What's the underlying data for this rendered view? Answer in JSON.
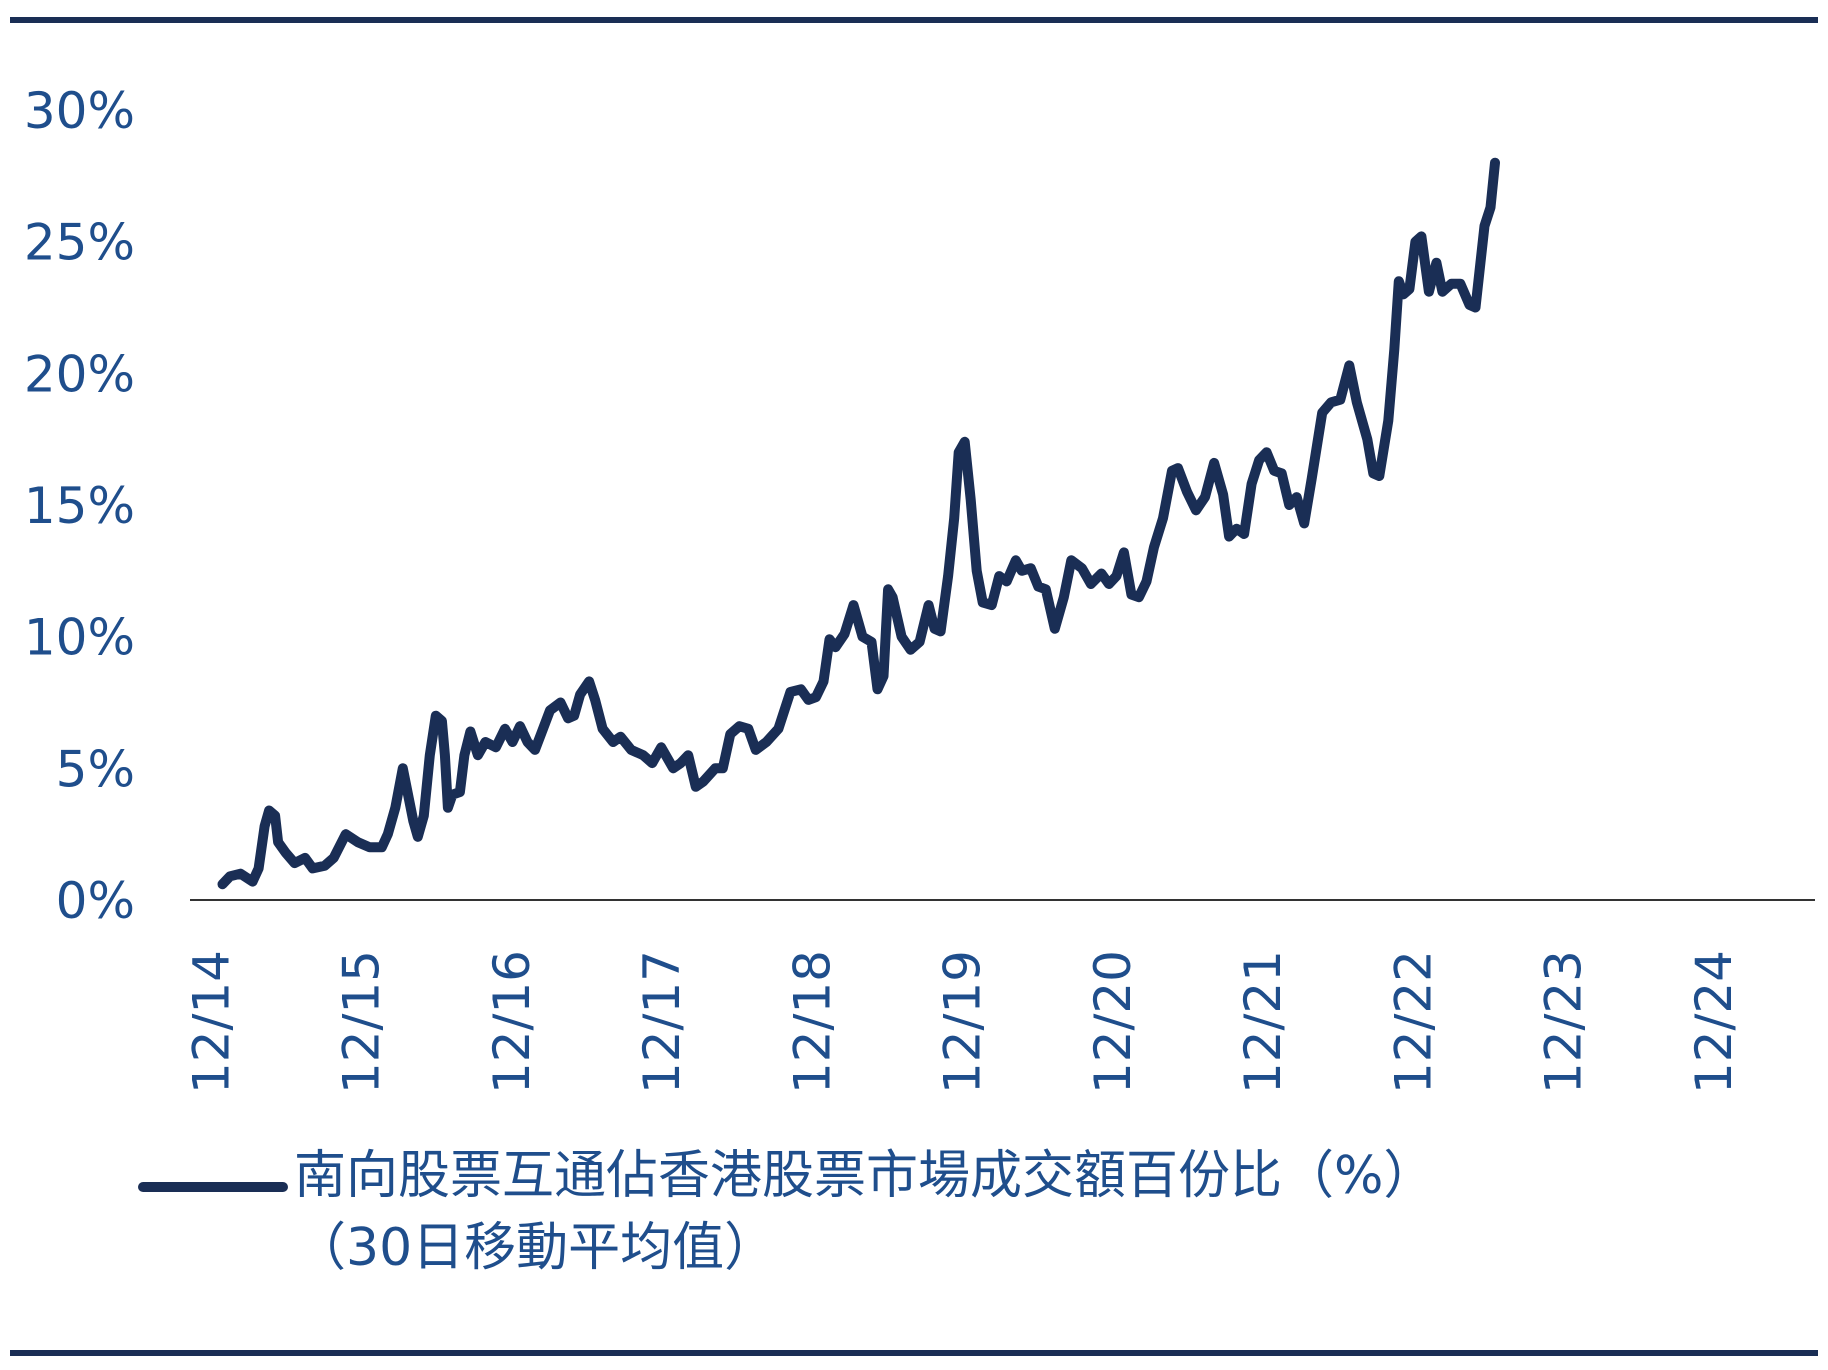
{
  "legend": {
    "line1": "南向股票互通佔香港股票市場成交額百份比（%）",
    "line2": "（30日移動平均值）"
  },
  "colors": {
    "line": "#1a2e55",
    "text": "#1f4e8c",
    "rule": "#1a2e55",
    "axis": "#333333"
  },
  "chart_data": {
    "type": "line",
    "title": "",
    "xlabel": "",
    "ylabel": "",
    "ylim": [
      0,
      30
    ],
    "xlim": [
      2014.95,
      2025.6
    ],
    "y_ticks": [
      0,
      5,
      10,
      15,
      20,
      25,
      30
    ],
    "y_tick_labels": [
      "0%",
      "5%",
      "10%",
      "15%",
      "20%",
      "25%",
      "30%"
    ],
    "x_ticks": [
      2014.92,
      2015.92,
      2016.92,
      2017.92,
      2018.92,
      2019.92,
      2020.92,
      2021.92,
      2022.92,
      2023.92,
      2024.92
    ],
    "x_tick_labels": [
      "12/14",
      "12/15",
      "12/16",
      "12/17",
      "12/18",
      "12/19",
      "12/20",
      "12/21",
      "12/22",
      "12/23",
      "12/24"
    ],
    "grid": false,
    "legend_position": "bottom-left",
    "series": [
      {
        "name": "南向股票互通佔香港股票市場成交額百份比（%）（30日移動平均值）",
        "points": [
          [
            2015.0,
            0.6
          ],
          [
            2015.05,
            0.9
          ],
          [
            2015.12,
            1.0
          ],
          [
            2015.2,
            0.7
          ],
          [
            2015.24,
            1.2
          ],
          [
            2015.28,
            2.8
          ],
          [
            2015.31,
            3.4
          ],
          [
            2015.35,
            3.2
          ],
          [
            2015.37,
            2.2
          ],
          [
            2015.42,
            1.8
          ],
          [
            2015.48,
            1.4
          ],
          [
            2015.55,
            1.6
          ],
          [
            2015.6,
            1.2
          ],
          [
            2015.68,
            1.3
          ],
          [
            2015.74,
            1.6
          ],
          [
            2015.82,
            2.5
          ],
          [
            2015.9,
            2.2
          ],
          [
            2015.98,
            2.0
          ],
          [
            2016.06,
            2.0
          ],
          [
            2016.1,
            2.5
          ],
          [
            2016.15,
            3.5
          ],
          [
            2016.2,
            5.0
          ],
          [
            2016.27,
            3.0
          ],
          [
            2016.3,
            2.4
          ],
          [
            2016.34,
            3.2
          ],
          [
            2016.38,
            5.5
          ],
          [
            2016.42,
            7.0
          ],
          [
            2016.46,
            6.8
          ],
          [
            2016.48,
            5.5
          ],
          [
            2016.5,
            3.5
          ],
          [
            2016.53,
            4.0
          ],
          [
            2016.58,
            4.1
          ],
          [
            2016.61,
            5.5
          ],
          [
            2016.65,
            6.4
          ],
          [
            2016.7,
            5.5
          ],
          [
            2016.75,
            6.0
          ],
          [
            2016.82,
            5.8
          ],
          [
            2016.88,
            6.5
          ],
          [
            2016.93,
            6.0
          ],
          [
            2016.98,
            6.6
          ],
          [
            2017.03,
            6.0
          ],
          [
            2017.08,
            5.7
          ],
          [
            2017.12,
            6.3
          ],
          [
            2017.18,
            7.2
          ],
          [
            2017.25,
            7.5
          ],
          [
            2017.3,
            6.9
          ],
          [
            2017.34,
            7.0
          ],
          [
            2017.38,
            7.8
          ],
          [
            2017.44,
            8.3
          ],
          [
            2017.48,
            7.6
          ],
          [
            2017.53,
            6.5
          ],
          [
            2017.6,
            6.0
          ],
          [
            2017.65,
            6.2
          ],
          [
            2017.72,
            5.7
          ],
          [
            2017.8,
            5.5
          ],
          [
            2017.86,
            5.2
          ],
          [
            2017.92,
            5.8
          ],
          [
            2018.0,
            5.0
          ],
          [
            2018.05,
            5.2
          ],
          [
            2018.1,
            5.5
          ],
          [
            2018.15,
            4.3
          ],
          [
            2018.2,
            4.5
          ],
          [
            2018.28,
            5.0
          ],
          [
            2018.33,
            5.0
          ],
          [
            2018.38,
            6.3
          ],
          [
            2018.44,
            6.6
          ],
          [
            2018.5,
            6.5
          ],
          [
            2018.55,
            5.7
          ],
          [
            2018.62,
            6.0
          ],
          [
            2018.7,
            6.5
          ],
          [
            2018.78,
            7.9
          ],
          [
            2018.85,
            8.0
          ],
          [
            2018.9,
            7.6
          ],
          [
            2018.95,
            7.7
          ],
          [
            2019.0,
            8.3
          ],
          [
            2019.04,
            9.9
          ],
          [
            2019.08,
            9.6
          ],
          [
            2019.14,
            10.1
          ],
          [
            2019.2,
            11.2
          ],
          [
            2019.26,
            10.0
          ],
          [
            2019.32,
            9.8
          ],
          [
            2019.36,
            8.0
          ],
          [
            2019.4,
            8.5
          ],
          [
            2019.43,
            11.8
          ],
          [
            2019.46,
            11.5
          ],
          [
            2019.52,
            10.0
          ],
          [
            2019.58,
            9.5
          ],
          [
            2019.64,
            9.8
          ],
          [
            2019.7,
            11.2
          ],
          [
            2019.74,
            10.3
          ],
          [
            2019.78,
            10.2
          ],
          [
            2019.83,
            12.3
          ],
          [
            2019.87,
            14.5
          ],
          [
            2019.9,
            17.0
          ],
          [
            2019.94,
            17.4
          ],
          [
            2019.98,
            15.2
          ],
          [
            2020.02,
            12.5
          ],
          [
            2020.06,
            11.3
          ],
          [
            2020.12,
            11.2
          ],
          [
            2020.17,
            12.3
          ],
          [
            2020.22,
            12.1
          ],
          [
            2020.28,
            12.9
          ],
          [
            2020.32,
            12.5
          ],
          [
            2020.38,
            12.6
          ],
          [
            2020.43,
            11.9
          ],
          [
            2020.48,
            11.8
          ],
          [
            2020.54,
            10.3
          ],
          [
            2020.6,
            11.5
          ],
          [
            2020.65,
            12.9
          ],
          [
            2020.72,
            12.6
          ],
          [
            2020.78,
            12.0
          ],
          [
            2020.85,
            12.4
          ],
          [
            2020.9,
            12.0
          ],
          [
            2020.95,
            12.3
          ],
          [
            2021.0,
            13.2
          ],
          [
            2021.05,
            11.6
          ],
          [
            2021.1,
            11.5
          ],
          [
            2021.15,
            12.1
          ],
          [
            2021.2,
            13.4
          ],
          [
            2021.26,
            14.5
          ],
          [
            2021.32,
            16.3
          ],
          [
            2021.36,
            16.4
          ],
          [
            2021.42,
            15.5
          ],
          [
            2021.48,
            14.8
          ],
          [
            2021.54,
            15.3
          ],
          [
            2021.6,
            16.6
          ],
          [
            2021.66,
            15.4
          ],
          [
            2021.7,
            13.8
          ],
          [
            2021.75,
            14.1
          ],
          [
            2021.8,
            13.9
          ],
          [
            2021.85,
            15.8
          ],
          [
            2021.9,
            16.7
          ],
          [
            2021.95,
            17.0
          ],
          [
            2022.0,
            16.3
          ],
          [
            2022.05,
            16.2
          ],
          [
            2022.1,
            15.0
          ],
          [
            2022.15,
            15.3
          ],
          [
            2022.2,
            14.3
          ],
          [
            2022.25,
            16.0
          ],
          [
            2022.32,
            18.5
          ],
          [
            2022.38,
            18.9
          ],
          [
            2022.44,
            19.0
          ],
          [
            2022.5,
            20.3
          ],
          [
            2022.55,
            18.9
          ],
          [
            2022.62,
            17.5
          ],
          [
            2022.66,
            16.2
          ],
          [
            2022.7,
            16.1
          ],
          [
            2022.76,
            18.2
          ],
          [
            2022.8,
            20.9
          ],
          [
            2022.83,
            23.5
          ],
          [
            2022.86,
            23.0
          ],
          [
            2022.9,
            23.2
          ],
          [
            2022.94,
            25.0
          ],
          [
            2022.98,
            25.2
          ],
          [
            2023.03,
            23.1
          ],
          [
            2023.08,
            24.2
          ],
          [
            2023.12,
            23.1
          ],
          [
            2023.18,
            23.4
          ],
          [
            2023.24,
            23.4
          ],
          [
            2023.3,
            22.6
          ],
          [
            2023.34,
            22.5
          ],
          [
            2023.4,
            25.6
          ],
          [
            2023.44,
            26.3
          ],
          [
            2023.47,
            28.0
          ]
        ]
      }
    ]
  }
}
